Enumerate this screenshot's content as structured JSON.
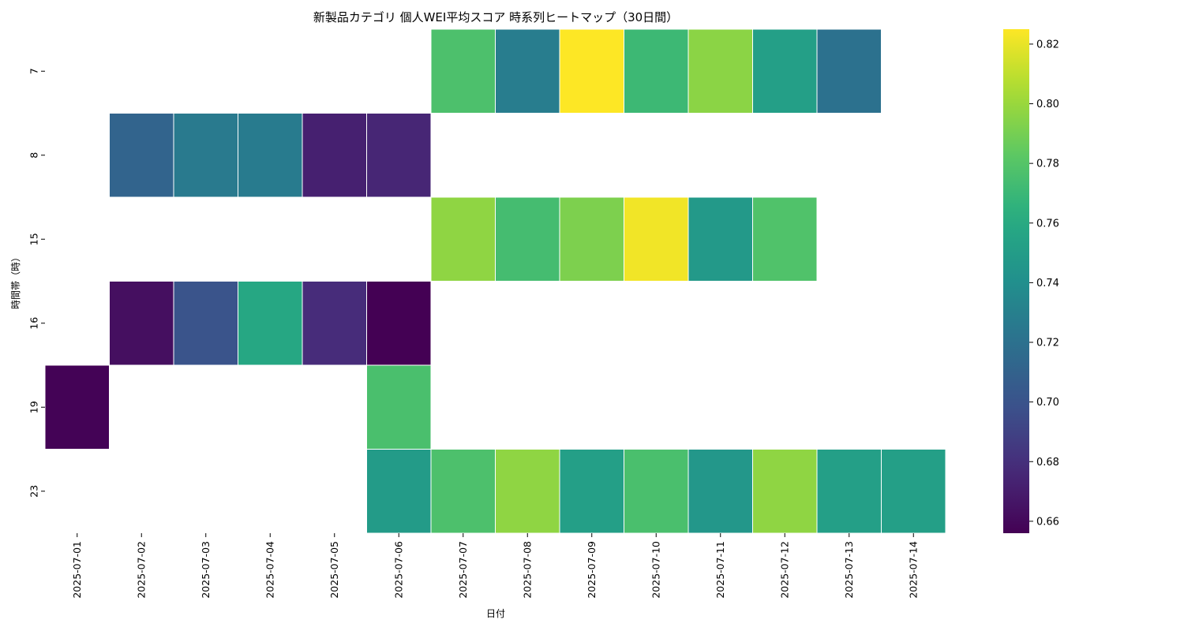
{
  "chart_data": {
    "type": "heatmap",
    "title": "新製品カテゴリ 個人WEI平均スコア 時系列ヒートマップ（30日間）",
    "xlabel": "日付",
    "ylabel": "時間帯（時）",
    "x": [
      "2025-07-01",
      "2025-07-02",
      "2025-07-03",
      "2025-07-04",
      "2025-07-05",
      "2025-07-06",
      "2025-07-07",
      "2025-07-08",
      "2025-07-09",
      "2025-07-10",
      "2025-07-11",
      "2025-07-12",
      "2025-07-13",
      "2025-07-14"
    ],
    "y": [
      "7",
      "8",
      "15",
      "16",
      "19",
      "23"
    ],
    "values": [
      [
        null,
        null,
        null,
        null,
        null,
        null,
        0.777,
        0.728,
        0.825,
        0.771,
        0.796,
        0.752,
        0.72,
        null
      ],
      [
        null,
        0.711,
        0.726,
        0.727,
        0.672,
        0.675,
        null,
        null,
        null,
        null,
        null,
        null,
        null,
        null
      ],
      [
        null,
        null,
        null,
        null,
        null,
        null,
        0.797,
        0.774,
        0.792,
        0.822,
        0.747,
        0.778,
        null,
        null
      ],
      [
        null,
        0.663,
        0.7,
        0.758,
        0.678,
        0.656,
        null,
        null,
        null,
        null,
        null,
        null,
        null,
        null
      ],
      [
        0.657,
        null,
        null,
        null,
        null,
        0.776,
        null,
        null,
        null,
        null,
        null,
        null,
        null,
        null
      ],
      [
        null,
        null,
        null,
        null,
        null,
        0.749,
        0.777,
        0.797,
        0.752,
        0.776,
        0.746,
        0.797,
        0.752,
        0.752
      ]
    ],
    "colorscale": "viridis",
    "zlim": [
      0.656,
      0.825
    ],
    "colorbar_ticks": [
      "0.66",
      "0.68",
      "0.70",
      "0.72",
      "0.74",
      "0.76",
      "0.78",
      "0.80",
      "0.82"
    ],
    "grid": false,
    "legend": "colorbar-right"
  }
}
